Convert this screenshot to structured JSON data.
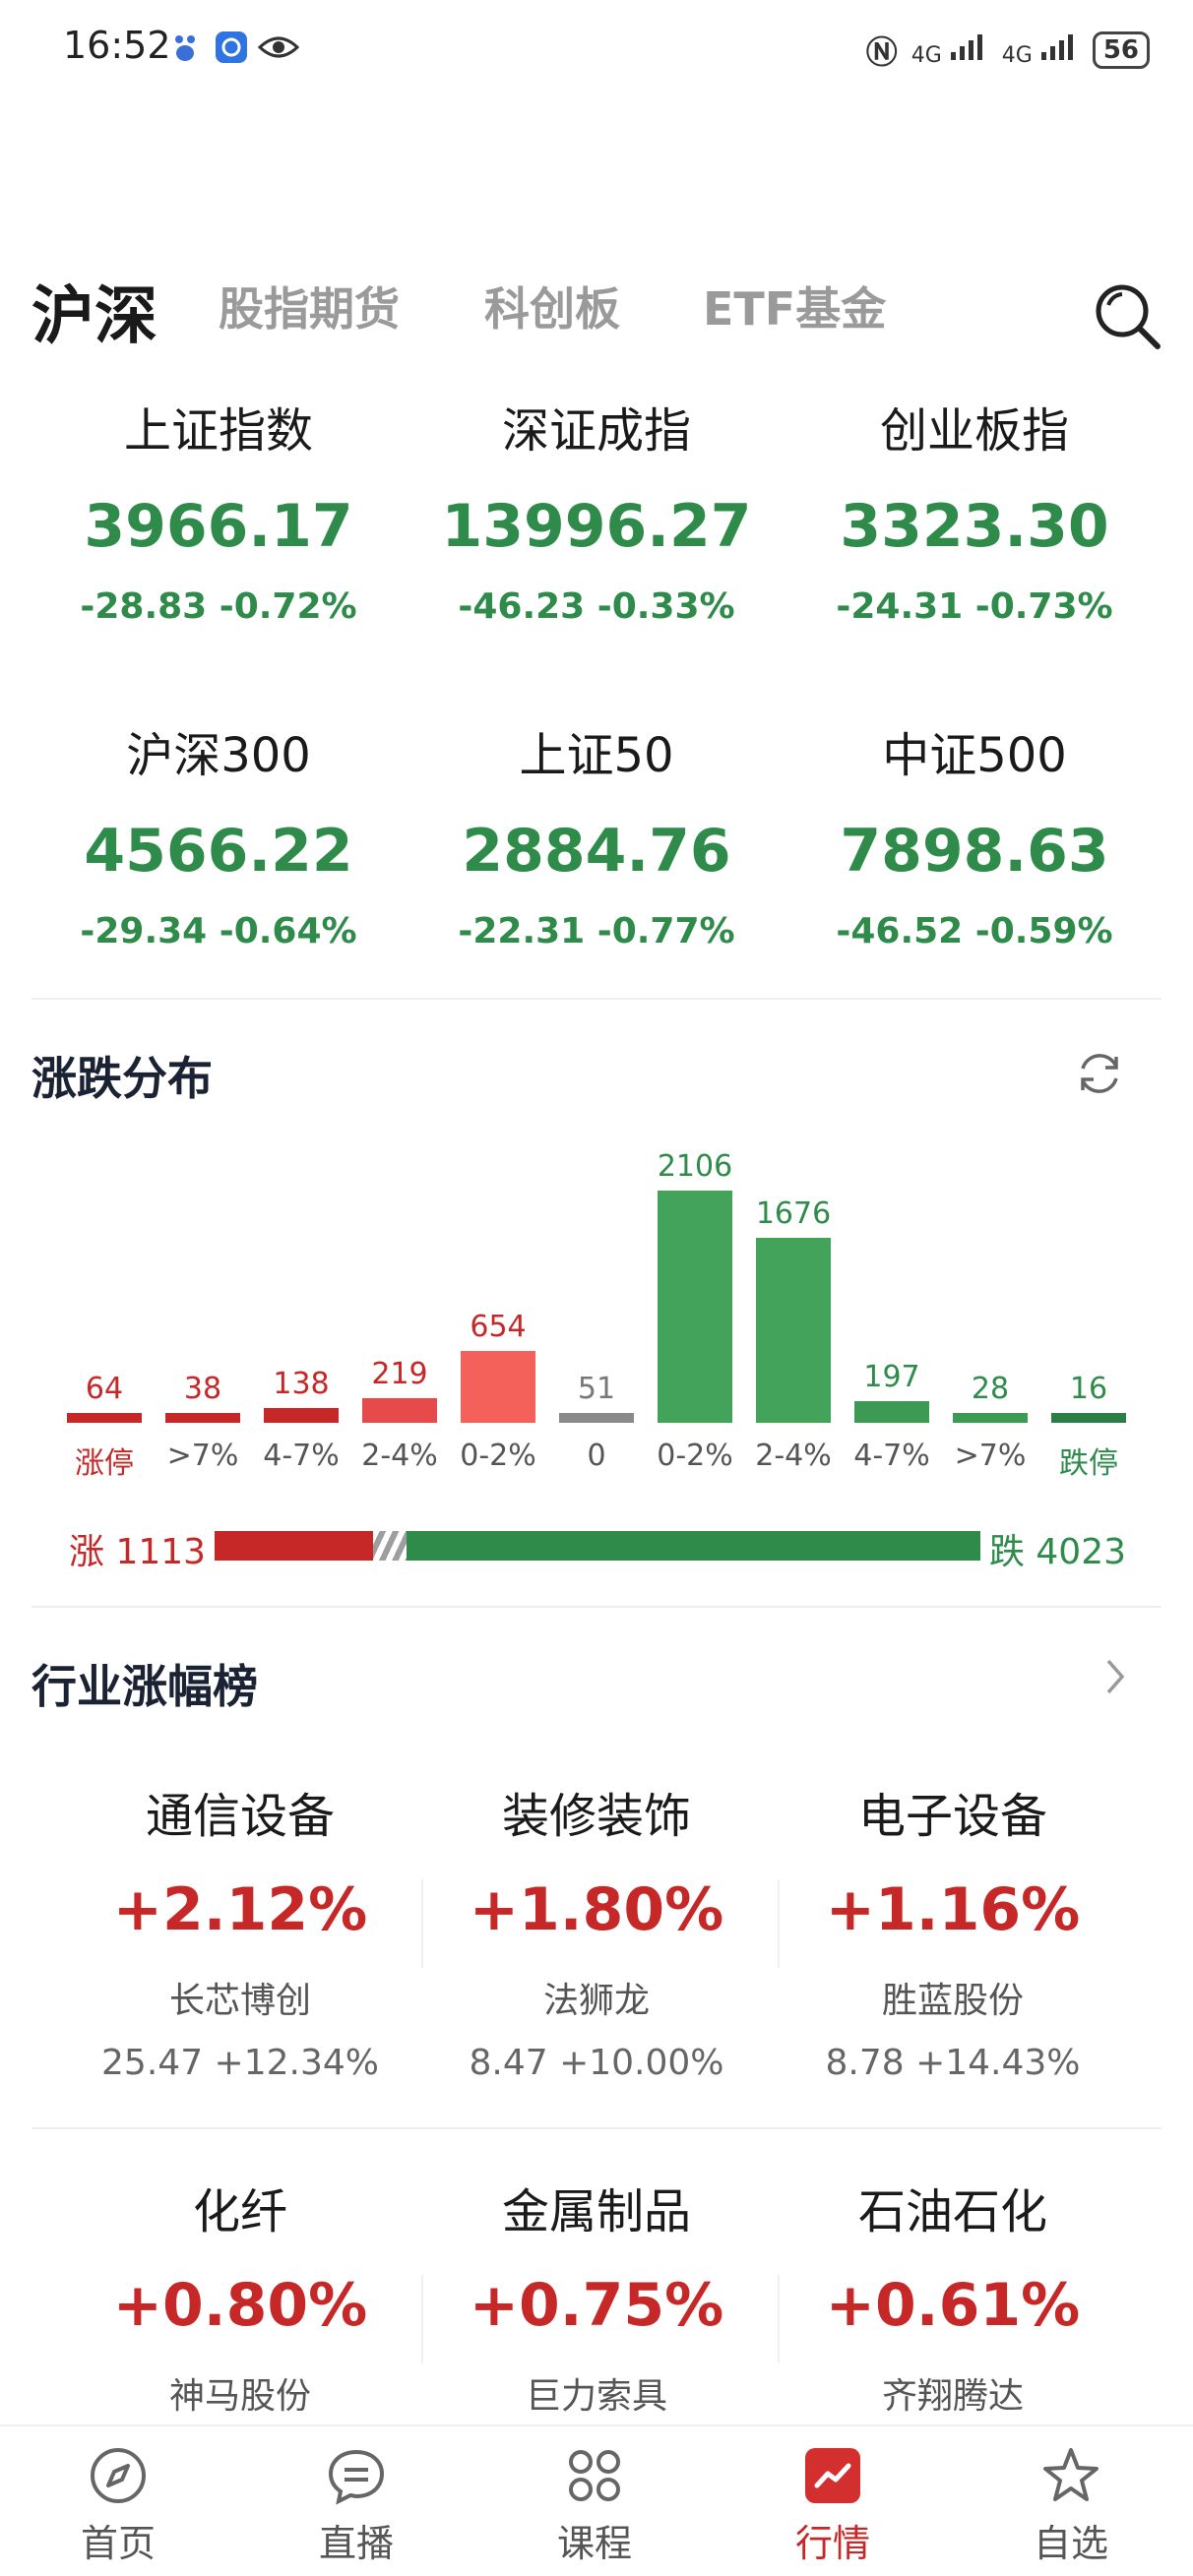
{
  "status_bar": {
    "time": "16:52",
    "signal_1": "4G",
    "signal_2": "4G",
    "battery": "56"
  },
  "tabs": [
    {
      "label": "沪深",
      "active": true
    },
    {
      "label": "股指期货"
    },
    {
      "label": "科创板"
    },
    {
      "label": "ETF基金"
    }
  ],
  "indices": [
    {
      "name": "上证指数",
      "price": "3966.17",
      "change": "-28.83  -0.72%"
    },
    {
      "name": "深证成指",
      "price": "13996.27",
      "change": "-46.23  -0.33%"
    },
    {
      "name": "创业板指",
      "price": "3323.30",
      "change": "-24.31  -0.73%"
    },
    {
      "name": "沪深300",
      "price": "4566.22",
      "change": "-29.34  -0.64%"
    },
    {
      "name": "上证50",
      "price": "2884.76",
      "change": "-22.31  -0.77%"
    },
    {
      "name": "中证500",
      "price": "7898.63",
      "change": "-46.52  -0.59%"
    }
  ],
  "distribution": {
    "title": "涨跌分布",
    "up_label": "涨 1113",
    "down_label": "跌 4023",
    "up_count": 1113,
    "down_count": 4023
  },
  "chart_data": {
    "type": "bar",
    "categories": [
      "涨停",
      ">7%",
      "4-7%",
      "2-4%",
      "0-2%",
      "0",
      "0-2%",
      "2-4%",
      "4-7%",
      ">7%",
      "跌停"
    ],
    "values": [
      64,
      38,
      138,
      219,
      654,
      51,
      2106,
      1676,
      197,
      28,
      16
    ],
    "value_labels": [
      "64",
      "38",
      "138",
      "219",
      "654",
      "51",
      "2106",
      "1676",
      "197",
      "28",
      "16"
    ],
    "colors": [
      "#c62828",
      "#c62828",
      "#c62828",
      "#e64a4a",
      "#f4605a",
      "#8a8a8a",
      "#43a35a",
      "#43a35a",
      "#3d9a55",
      "#3d9a55",
      "#2e7d46"
    ],
    "ylim": [
      0,
      2106
    ]
  },
  "industry": {
    "title": "行业涨幅榜",
    "items": [
      {
        "name": "通信设备",
        "pct": "+2.12%",
        "stock": "长芯博创",
        "stock_data": "25.47  +12.34%"
      },
      {
        "name": "装修装饰",
        "pct": "+1.80%",
        "stock": "法狮龙",
        "stock_data": "8.47  +10.00%"
      },
      {
        "name": "电子设备",
        "pct": "+1.16%",
        "stock": "胜蓝股份",
        "stock_data": "8.78  +14.43%"
      },
      {
        "name": "化纤",
        "pct": "+0.80%",
        "stock": "神马股份",
        "stock_data": ""
      },
      {
        "name": "金属制品",
        "pct": "+0.75%",
        "stock": "巨力索具",
        "stock_data": ""
      },
      {
        "name": "石油石化",
        "pct": "+0.61%",
        "stock": "齐翔腾达",
        "stock_data": ""
      }
    ]
  },
  "bottom_nav": [
    {
      "label": "首页",
      "icon": "compass-icon"
    },
    {
      "label": "直播",
      "icon": "chat-bubble-icon"
    },
    {
      "label": "课程",
      "icon": "clover-icon"
    },
    {
      "label": "行情",
      "icon": "market-chart-icon",
      "active": true
    },
    {
      "label": "自选",
      "icon": "star-icon"
    }
  ],
  "colors": {
    "up": "#c62828",
    "down": "#2e8b4a",
    "flat": "#8a8a8a"
  }
}
